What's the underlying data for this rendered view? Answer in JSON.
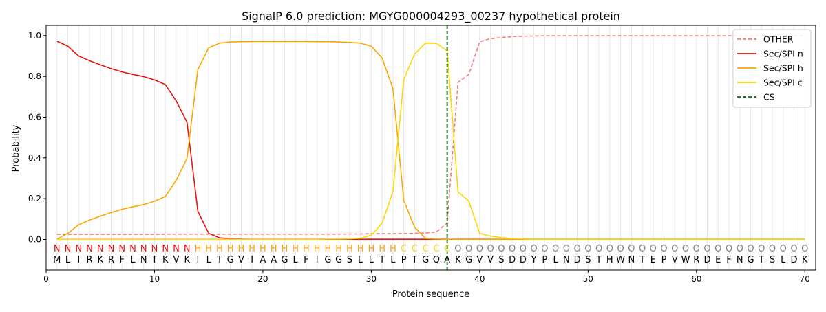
{
  "chart_data": {
    "type": "line",
    "title": "SignalP 6.0 prediction: MGYG000004293_00237 hypothetical protein",
    "xlabel": "Protein sequence",
    "ylabel": "Probability",
    "xlim": [
      0,
      71
    ],
    "ylim": [
      -0.15,
      1.05
    ],
    "x_ticks": [
      0,
      10,
      20,
      30,
      40,
      50,
      60,
      70
    ],
    "y_ticks": [
      0.0,
      0.2,
      0.4,
      0.6,
      0.8,
      1.0
    ],
    "x_tick_labels": [
      "0",
      "10",
      "20",
      "30",
      "40",
      "50",
      "60",
      "70"
    ],
    "y_tick_labels": [
      "0.0",
      "0.2",
      "0.4",
      "0.6",
      "0.8",
      "1.0"
    ],
    "grid": "vertical lines at each residue",
    "legend_position": "top-right",
    "sequence": [
      "M",
      "L",
      "I",
      "R",
      "K",
      "R",
      "F",
      "L",
      "N",
      "T",
      "K",
      "V",
      "K",
      "I",
      "L",
      "T",
      "G",
      "V",
      "I",
      "A",
      "A",
      "G",
      "L",
      "F",
      "I",
      "G",
      "G",
      "S",
      "L",
      "L",
      "T",
      "L",
      "P",
      "T",
      "G",
      "Q",
      "A",
      "K",
      "G",
      "V",
      "V",
      "S",
      "D",
      "D",
      "Y",
      "P",
      "L",
      "N",
      "D",
      "S",
      "T",
      "H",
      "W",
      "N",
      "T",
      "E",
      "P",
      "V",
      "W",
      "R",
      "D",
      "E",
      "F",
      "N",
      "G",
      "T",
      "S",
      "L",
      "D",
      "K"
    ],
    "region_labels": [
      "N",
      "N",
      "N",
      "N",
      "N",
      "N",
      "N",
      "N",
      "N",
      "N",
      "N",
      "N",
      "N",
      "H",
      "H",
      "H",
      "H",
      "H",
      "H",
      "H",
      "H",
      "H",
      "H",
      "H",
      "H",
      "H",
      "H",
      "H",
      "H",
      "H",
      "H",
      "H",
      "C",
      "C",
      "C",
      "C",
      "C",
      "O",
      "O",
      "O",
      "O",
      "O",
      "O",
      "O",
      "O",
      "O",
      "O",
      "O",
      "O",
      "O",
      "O",
      "O",
      "O",
      "O",
      "O",
      "O",
      "O",
      "O",
      "O",
      "O",
      "O",
      "O",
      "O",
      "O",
      "O",
      "O",
      "O",
      "O",
      "O",
      "O"
    ],
    "region_colors": {
      "N": "#e8120e",
      "H": "#ffa500",
      "C": "#ffd700",
      "O": "#808080"
    },
    "series": [
      {
        "name": "OTHER",
        "color": "#ec7b7b",
        "style": "dashed",
        "values": [
          0.025,
          0.025,
          0.025,
          0.025,
          0.025,
          0.025,
          0.025,
          0.025,
          0.025,
          0.025,
          0.026,
          0.026,
          0.026,
          0.026,
          0.026,
          0.026,
          0.026,
          0.026,
          0.026,
          0.026,
          0.026,
          0.026,
          0.026,
          0.026,
          0.026,
          0.026,
          0.026,
          0.027,
          0.027,
          0.028,
          0.028,
          0.028,
          0.029,
          0.03,
          0.032,
          0.037,
          0.08,
          0.77,
          0.81,
          0.97,
          0.985,
          0.99,
          0.995,
          0.997,
          0.998,
          0.999,
          0.999,
          0.999,
          0.999,
          0.999,
          0.999,
          0.999,
          0.999,
          0.999,
          0.999,
          0.999,
          0.999,
          0.999,
          0.999,
          0.999,
          0.999,
          0.999,
          0.999,
          0.999,
          0.999,
          0.999,
          0.999,
          0.999,
          0.999,
          0.999
        ]
      },
      {
        "name": "Sec/SPI n",
        "color": "#e8120e",
        "style": "solid",
        "values": [
          0.973,
          0.948,
          0.9,
          0.877,
          0.857,
          0.838,
          0.822,
          0.81,
          0.799,
          0.783,
          0.76,
          0.68,
          0.575,
          0.138,
          0.03,
          0.008,
          0.004,
          0.002,
          0.001,
          0.001,
          0.001,
          0.001,
          0.001,
          0.001,
          0.001,
          0.001,
          0.001,
          0.001,
          0.001,
          0.001,
          0.001,
          0.001,
          0.001,
          0.001,
          0.001,
          0.001,
          0.001,
          0.001,
          0.001,
          0.001,
          0.001,
          0.001,
          0.001,
          0.001,
          0.001,
          0.001,
          0.001,
          0.001,
          0.001,
          0.001,
          0.001,
          0.001,
          0.001,
          0.001,
          0.001,
          0.001,
          0.001,
          0.001,
          0.001,
          0.001,
          0.001,
          0.001,
          0.001,
          0.001,
          0.001,
          0.001,
          0.001,
          0.001,
          0.001,
          0.001
        ]
      },
      {
        "name": "Sec/SPI h",
        "color": "#ffa500",
        "style": "solid",
        "values": [
          0.002,
          0.03,
          0.072,
          0.095,
          0.114,
          0.132,
          0.148,
          0.16,
          0.171,
          0.187,
          0.211,
          0.29,
          0.398,
          0.834,
          0.94,
          0.963,
          0.969,
          0.97,
          0.971,
          0.971,
          0.971,
          0.971,
          0.971,
          0.971,
          0.97,
          0.97,
          0.969,
          0.967,
          0.963,
          0.948,
          0.89,
          0.74,
          0.19,
          0.06,
          0.005,
          0.002,
          0.001,
          0.001,
          0.001,
          0.001,
          0.001,
          0.001,
          0.001,
          0.001,
          0.001,
          0.001,
          0.001,
          0.001,
          0.001,
          0.001,
          0.001,
          0.001,
          0.001,
          0.001,
          0.001,
          0.001,
          0.001,
          0.001,
          0.001,
          0.001,
          0.001,
          0.001,
          0.001,
          0.001,
          0.001,
          0.001,
          0.001,
          0.001,
          0.001,
          0.001
        ]
      },
      {
        "name": "Sec/SPI c",
        "color": "#ffd700",
        "style": "solid",
        "values": [
          0.001,
          0.001,
          0.001,
          0.001,
          0.001,
          0.001,
          0.001,
          0.001,
          0.001,
          0.001,
          0.001,
          0.001,
          0.001,
          0.001,
          0.001,
          0.001,
          0.001,
          0.001,
          0.001,
          0.001,
          0.001,
          0.001,
          0.001,
          0.001,
          0.001,
          0.002,
          0.002,
          0.003,
          0.006,
          0.02,
          0.08,
          0.235,
          0.785,
          0.91,
          0.963,
          0.962,
          0.925,
          0.233,
          0.188,
          0.03,
          0.016,
          0.009,
          0.005,
          0.003,
          0.002,
          0.001,
          0.001,
          0.001,
          0.001,
          0.001,
          0.001,
          0.001,
          0.001,
          0.001,
          0.001,
          0.001,
          0.001,
          0.001,
          0.001,
          0.001,
          0.001,
          0.001,
          0.001,
          0.001,
          0.001,
          0.001,
          0.001,
          0.001,
          0.001,
          0.001
        ]
      }
    ],
    "cleavage_site": {
      "name": "CS",
      "x": 37,
      "color": "#006400",
      "style": "dashed"
    }
  }
}
